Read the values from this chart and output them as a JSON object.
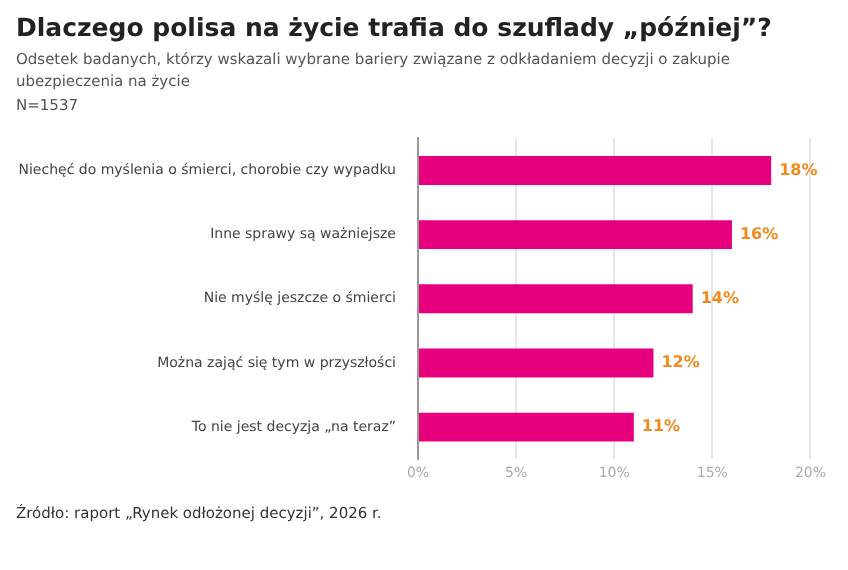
{
  "chart_data": {
    "type": "bar",
    "orientation": "horizontal",
    "title": "Dlaczego polisa na życie trafia do szuflady „później”?",
    "subtitle": "Odsetek badanych, którzy wskazali wybrane bariery związane z odkładaniem decyzji o zakupie ubezpieczenia na życie",
    "categories": [
      "Niechęć do myślenia o śmierci, chorobie czy wypadku",
      "Inne sprawy są ważniejsze",
      "Nie myślę jeszcze o śmierci",
      "Można zająć się tym w przyszłości",
      "To nie jest decyzja „na teraz”"
    ],
    "values": [
      18,
      16,
      14,
      12,
      11
    ],
    "value_labels": [
      "18%",
      "16%",
      "14%",
      "12%",
      "11%"
    ],
    "color": "#e6007e",
    "xlim": [
      0,
      20
    ],
    "xticks": [
      {
        "value": 0,
        "label": "0%"
      },
      {
        "value": 5,
        "label": "5%"
      },
      {
        "value": 10,
        "label": "10%"
      },
      {
        "value": 15,
        "label": "15%"
      },
      {
        "value": 20,
        "label": "20%"
      }
    ],
    "grid": "x",
    "annotations": [
      "N=1537",
      "Źródło: raport „Rynek odłożonej decyzji”, 2026 r."
    ]
  }
}
